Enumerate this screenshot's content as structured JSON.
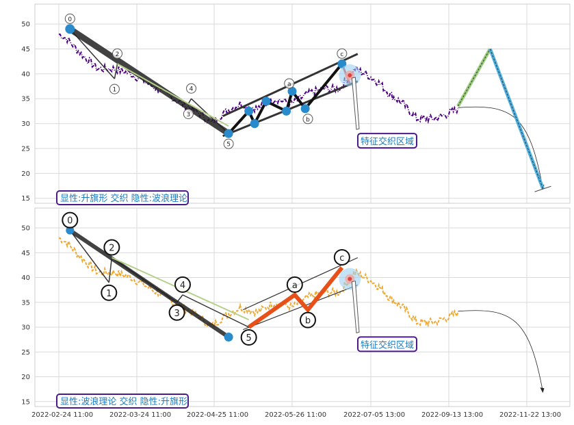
{
  "chart_data": {
    "type": "line",
    "x_tick_labels": [
      "2022-02-24 11:00",
      "2022-03-24 11:00",
      "2022-04-25 11:00",
      "2022-05-26 11:00",
      "2022-07-05 13:00",
      "2022-09-13 13:00",
      "2022-11-22 13:00"
    ],
    "y_ticks": [
      15,
      20,
      25,
      30,
      35,
      40,
      45,
      50
    ],
    "ylim": [
      14,
      54
    ],
    "grid": true,
    "price_series_anchors": [
      [
        0,
        48
      ],
      [
        3,
        47
      ],
      [
        8,
        44
      ],
      [
        14,
        41
      ],
      [
        20,
        41
      ],
      [
        26,
        40
      ],
      [
        32,
        38
      ],
      [
        38,
        36
      ],
      [
        44,
        34
      ],
      [
        50,
        32
      ],
      [
        54,
        30
      ],
      [
        58,
        32
      ],
      [
        64,
        34
      ],
      [
        70,
        33
      ],
      [
        76,
        35
      ],
      [
        82,
        34
      ],
      [
        88,
        36
      ],
      [
        94,
        37
      ],
      [
        100,
        37
      ],
      [
        106,
        41
      ],
      [
        110,
        40
      ],
      [
        116,
        38
      ],
      [
        120,
        36
      ],
      [
        126,
        34
      ],
      [
        132,
        31
      ],
      [
        140,
        31
      ],
      [
        146,
        32
      ],
      [
        150,
        33
      ]
    ],
    "projection": {
      "zigzag": [
        [
          150,
          33.5
        ],
        [
          164,
          45
        ],
        [
          187,
          17
        ]
      ],
      "arc_start": [
        150,
        33.2
      ],
      "arc_end": [
        187,
        17
      ]
    },
    "panels": [
      {
        "price_color": "#4b0082",
        "label": "显性:升旗形 交织 隐性:波浪理论",
        "annotation": "特征交织区域",
        "wave_points": [
          {
            "label": "0",
            "x": 4,
            "y": 49
          },
          {
            "label": "1",
            "x": 20,
            "y": 39
          },
          {
            "label": "2",
            "x": 21,
            "y": 42
          },
          {
            "label": "3",
            "x": 46,
            "y": 34
          },
          {
            "label": "4",
            "x": 47,
            "y": 35
          },
          {
            "label": "5",
            "x": 60,
            "y": 28
          },
          {
            "label": "a",
            "x": 81,
            "y": 36
          },
          {
            "label": "b",
            "x": 88,
            "y": 33
          },
          {
            "label": "c",
            "x": 101,
            "y": 42
          }
        ],
        "swing_points": [
          [
            60,
            28
          ],
          [
            67,
            32.5
          ],
          [
            69,
            30
          ],
          [
            73,
            34.5
          ],
          [
            80,
            32.5
          ],
          [
            82,
            36.5
          ],
          [
            87,
            33
          ],
          [
            101,
            42
          ]
        ]
      },
      {
        "price_color": "#f0a830",
        "label": "显性:波浪理论 交织 隐性:升旗形",
        "annotation": "特征交织区域",
        "wave_points": [
          {
            "label": "0",
            "x": 4,
            "y": 49.5
          },
          {
            "label": "1",
            "x": 18,
            "y": 39
          },
          {
            "label": "2",
            "x": 19,
            "y": 44
          },
          {
            "label": "3",
            "x": 42,
            "y": 35
          },
          {
            "label": "4",
            "x": 44,
            "y": 36.5
          },
          {
            "label": "5",
            "x": 67,
            "y": 30
          },
          {
            "label": "a",
            "x": 83,
            "y": 36.5
          },
          {
            "label": "b",
            "x": 88,
            "y": 33.5
          },
          {
            "label": "c",
            "x": 101,
            "y": 42
          }
        ]
      }
    ]
  }
}
